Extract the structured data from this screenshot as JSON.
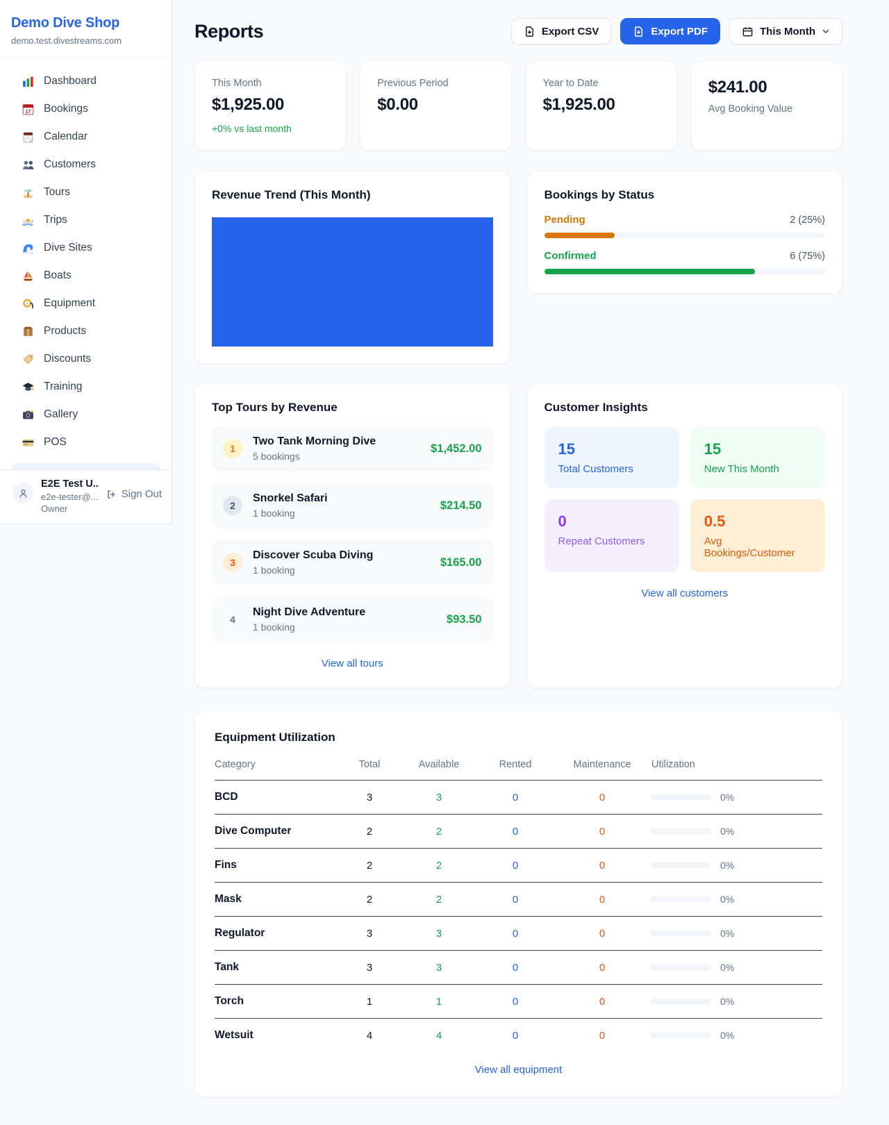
{
  "colors": {
    "brand_blue": "#2563eb",
    "page_bg": "#f8fafc",
    "green": "#16a34a",
    "pending_orange": "#d97706",
    "maintenance_orange": "#ea580c",
    "purple": "#9333ea",
    "muted_gray": "#64748b"
  },
  "app": {
    "name": "Demo Dive Shop",
    "domain": "demo.test.divestreams.com"
  },
  "sidebar": {
    "items": [
      {
        "label": "Dashboard",
        "icon": "bar-chart-icon"
      },
      {
        "label": "Bookings",
        "icon": "calendar-date-icon"
      },
      {
        "label": "Calendar",
        "icon": "notepad-icon"
      },
      {
        "label": "Customers",
        "icon": "people-icon"
      },
      {
        "label": "Tours",
        "icon": "island-icon"
      },
      {
        "label": "Trips",
        "icon": "speedboat-icon"
      },
      {
        "label": "Dive Sites",
        "icon": "wave-icon"
      },
      {
        "label": "Boats",
        "icon": "sailboat-icon"
      },
      {
        "label": "Equipment",
        "icon": "dive-mask-icon"
      },
      {
        "label": "Products",
        "icon": "box-icon"
      },
      {
        "label": "Discounts",
        "icon": "tag-icon"
      },
      {
        "label": "Training",
        "icon": "graduation-cap-icon"
      },
      {
        "label": "Gallery",
        "icon": "camera-icon"
      },
      {
        "label": "POS",
        "icon": "credit-card-icon"
      }
    ],
    "user": {
      "name": "E2E Test U...",
      "email": "e2e-tester@...",
      "role": "Owner",
      "sign_out_label": "Sign Out"
    }
  },
  "header": {
    "title": "Reports",
    "export_csv_label": "Export CSV",
    "export_pdf_label": "Export PDF",
    "period_label": "This Month"
  },
  "stats": [
    {
      "label": "This Month",
      "value": "$1,925.00",
      "delta": "+0% vs last month"
    },
    {
      "label": "Previous Period",
      "value": "$0.00"
    },
    {
      "label": "Year to Date",
      "value": "$1,925.00"
    },
    {
      "label": "Avg Booking Value",
      "value": "$241.00"
    }
  ],
  "revenue_trend": {
    "title": "Revenue Trend (This Month)",
    "chart_data": {
      "type": "bar",
      "categories": [
        "This Month"
      ],
      "values": [
        1925
      ],
      "title": "Revenue Trend (This Month)",
      "bar_color": "#2563eb",
      "note": "single bar fills entire plot area; no axes or labels shown"
    }
  },
  "bookings_status": {
    "title": "Bookings by Status",
    "items": [
      {
        "label": "Pending",
        "value": "2 (25%)",
        "pct": 25,
        "color": "#d97706"
      },
      {
        "label": "Confirmed",
        "value": "6 (75%)",
        "pct": 75,
        "color": "#16a34a"
      }
    ]
  },
  "top_tours": {
    "title": "Top Tours by Revenue",
    "view_all_label": "View all tours",
    "items": [
      {
        "rank": "1",
        "name": "Two Tank Morning Dive",
        "bookings": "5 bookings",
        "revenue": "$1,452.00"
      },
      {
        "rank": "2",
        "name": "Snorkel Safari",
        "bookings": "1 booking",
        "revenue": "$214.50"
      },
      {
        "rank": "3",
        "name": "Discover Scuba Diving",
        "bookings": "1 booking",
        "revenue": "$165.00"
      },
      {
        "rank": "4",
        "name": "Night Dive Adventure",
        "bookings": "1 booking",
        "revenue": "$93.50"
      }
    ]
  },
  "customer_insights": {
    "title": "Customer Insights",
    "view_all_label": "View all customers",
    "tiles": [
      {
        "value": "15",
        "label": "Total Customers",
        "color": "#2563eb"
      },
      {
        "value": "15",
        "label": "New This Month",
        "color": "#16a34a"
      },
      {
        "value": "0",
        "label": "Repeat Customers",
        "color": "#9333ea"
      },
      {
        "value": "0.5",
        "label": "Avg Bookings/Customer",
        "color": "#ea580c"
      }
    ]
  },
  "equipment": {
    "title": "Equipment Utilization",
    "view_all_label": "View all equipment",
    "columns": [
      "Category",
      "Total",
      "Available",
      "Rented",
      "Maintenance",
      "Utilization"
    ],
    "rows": [
      {
        "category": "BCD",
        "total": "3",
        "available": "3",
        "rented": "0",
        "maintenance": "0",
        "utilization_pct": 0,
        "utilization": "0%"
      },
      {
        "category": "Dive Computer",
        "total": "2",
        "available": "2",
        "rented": "0",
        "maintenance": "0",
        "utilization_pct": 0,
        "utilization": "0%"
      },
      {
        "category": "Fins",
        "total": "2",
        "available": "2",
        "rented": "0",
        "maintenance": "0",
        "utilization_pct": 0,
        "utilization": "0%"
      },
      {
        "category": "Mask",
        "total": "2",
        "available": "2",
        "rented": "0",
        "maintenance": "0",
        "utilization_pct": 0,
        "utilization": "0%"
      },
      {
        "category": "Regulator",
        "total": "3",
        "available": "3",
        "rented": "0",
        "maintenance": "0",
        "utilization_pct": 0,
        "utilization": "0%"
      },
      {
        "category": "Tank",
        "total": "3",
        "available": "3",
        "rented": "0",
        "maintenance": "0",
        "utilization_pct": 0,
        "utilization": "0%"
      },
      {
        "category": "Torch",
        "total": "1",
        "available": "1",
        "rented": "0",
        "maintenance": "0",
        "utilization_pct": 0,
        "utilization": "0%"
      },
      {
        "category": "Wetsuit",
        "total": "4",
        "available": "4",
        "rented": "0",
        "maintenance": "0",
        "utilization_pct": 0,
        "utilization": "0%"
      }
    ]
  }
}
